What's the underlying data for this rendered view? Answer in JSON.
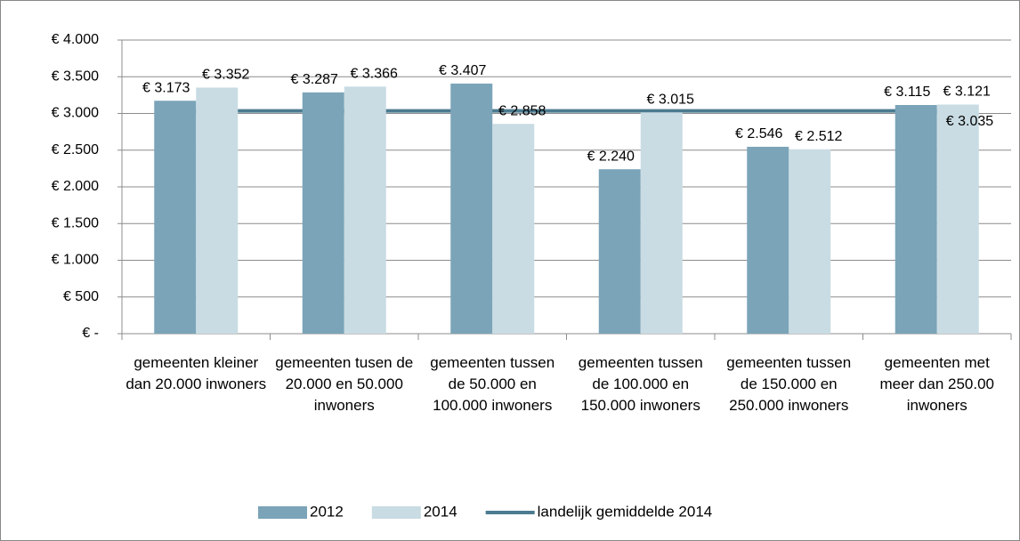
{
  "chart_data": {
    "type": "bar",
    "categories": [
      "gemeenten kleiner dan 20.000 inwoners",
      "gemeenten tusen de 20.000 en 50.000 inwoners",
      "gemeenten tussen de 50.000 en 100.000 inwoners",
      "gemeenten tussen de 100.000 en 150.000 inwoners",
      "gemeenten tussen de 150.000 en 250.000 inwoners",
      "gemeenten met meer dan 250.00 inwoners"
    ],
    "series": [
      {
        "name": "2012",
        "type": "bar",
        "color": "#7ba4b8",
        "values": [
          3173,
          3287,
          3407,
          2240,
          2546,
          3115
        ],
        "value_labels": [
          "€ 3.173",
          "€ 3.287",
          "€ 3.407",
          "€ 2.240",
          "€ 2.546",
          "€ 3.115"
        ]
      },
      {
        "name": "2014",
        "type": "bar",
        "color": "#c9dce3",
        "values": [
          3352,
          3366,
          2858,
          3015,
          2512,
          3121
        ],
        "value_labels": [
          "€ 3.352",
          "€ 3.366",
          "€ 2.858",
          "€ 3.015",
          "€ 2.512",
          "€ 3.121"
        ]
      },
      {
        "name": "landelijk gemiddelde 2014",
        "type": "line",
        "color": "#4b7b91",
        "values": [
          3035,
          3035,
          3035,
          3035,
          3035,
          3035
        ],
        "value_labels": [
          null,
          null,
          null,
          null,
          null,
          "€ 3.035"
        ]
      }
    ],
    "ylim": [
      0,
      4000
    ],
    "yticks": [
      {
        "value": 0,
        "label": "€ -"
      },
      {
        "value": 500,
        "label": "€ 500"
      },
      {
        "value": 1000,
        "label": "€ 1.000"
      },
      {
        "value": 1500,
        "label": "€ 1.500"
      },
      {
        "value": 2000,
        "label": "€ 2.000"
      },
      {
        "value": 2500,
        "label": "€ 2.500"
      },
      {
        "value": 3000,
        "label": "€ 3.000"
      },
      {
        "value": 3500,
        "label": "€ 3.500"
      },
      {
        "value": 4000,
        "label": "€ 4.000"
      }
    ],
    "grid": true,
    "legend": "bottom"
  }
}
